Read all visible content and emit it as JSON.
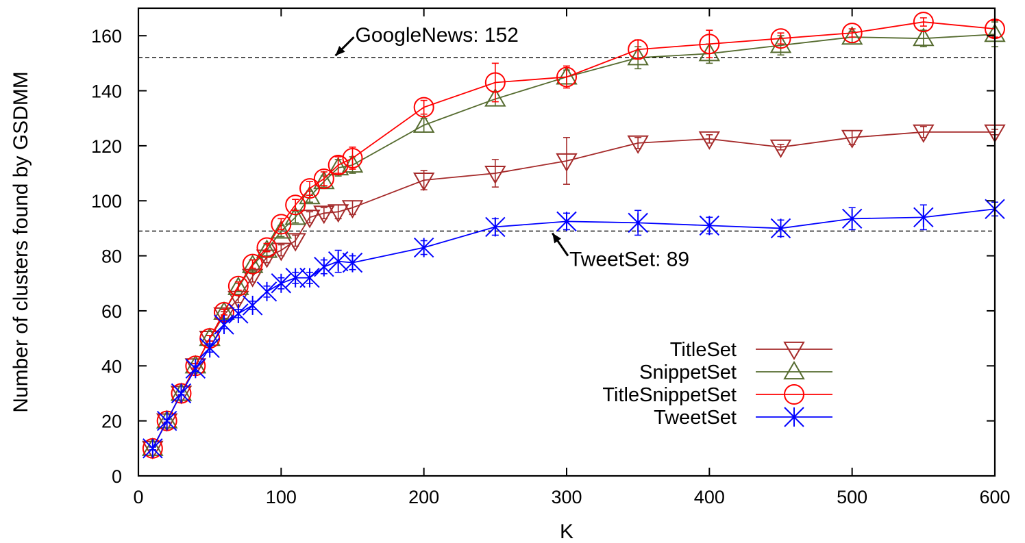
{
  "chart_data": {
    "type": "line",
    "title": "",
    "xlabel": "K",
    "ylabel": "Number of clusters found by GSDMM",
    "xlim": [
      0,
      600
    ],
    "ylim": [
      0,
      170
    ],
    "xticks": [
      0,
      100,
      200,
      300,
      400,
      500,
      600
    ],
    "yticks": [
      0,
      20,
      40,
      60,
      80,
      100,
      120,
      140,
      160
    ],
    "grid": false,
    "legend_position": "bottom-right",
    "x": [
      10,
      20,
      30,
      40,
      50,
      60,
      70,
      80,
      90,
      100,
      110,
      120,
      130,
      140,
      150,
      200,
      250,
      300,
      350,
      400,
      450,
      500,
      550,
      600
    ],
    "series": [
      {
        "name": "TitleSet",
        "color": "#a52a2a",
        "marker": "triangle-down",
        "values": [
          10,
          20,
          30,
          40,
          50,
          58.5,
          64.5,
          72.5,
          79.5,
          82,
          85.5,
          94,
          95.5,
          96,
          97.5,
          107.5,
          110,
          114.5,
          121,
          122.5,
          119.5,
          123,
          125,
          125
        ],
        "errors": [
          0.5,
          0.5,
          0.5,
          0.8,
          1,
          1.2,
          1.5,
          2,
          2,
          2,
          2,
          2,
          2,
          2.5,
          2.5,
          3.5,
          5,
          8.5,
          2,
          1.5,
          1,
          2.5,
          2,
          1
        ]
      },
      {
        "name": "SnippetSet",
        "color": "#556b2f",
        "marker": "triangle-up",
        "values": [
          10,
          20,
          30,
          40,
          50,
          59.5,
          68.5,
          76.5,
          82,
          89,
          94,
          101.5,
          107,
          112,
          113,
          127.5,
          137,
          145,
          152,
          153.5,
          156.5,
          159.5,
          159,
          160.5
        ],
        "errors": [
          0.5,
          0.5,
          0.5,
          0.8,
          1,
          1,
          1.5,
          2,
          2,
          2,
          2,
          2,
          2,
          3,
          3,
          2.5,
          2.5,
          2.5,
          4,
          3.5,
          3.5,
          2,
          3,
          4.5
        ]
      },
      {
        "name": "TitleSnippetSet",
        "color": "#ff0000",
        "marker": "circle",
        "values": [
          10,
          20,
          30,
          40,
          50,
          59.5,
          69,
          77,
          83,
          91.5,
          98.5,
          104.5,
          108,
          113,
          115.5,
          134,
          143,
          145,
          155,
          157,
          159,
          161,
          165,
          162.5
        ],
        "errors": [
          0.5,
          0.5,
          0.5,
          0.8,
          1,
          1,
          1.5,
          1.5,
          1.5,
          2,
          2,
          2.5,
          2.5,
          3,
          4,
          2.5,
          7,
          4,
          3.5,
          5,
          2,
          1.5,
          1.5,
          3
        ]
      },
      {
        "name": "TweetSet",
        "color": "#0000ff",
        "marker": "x-star",
        "values": [
          10,
          20,
          30,
          39,
          46.5,
          55,
          59,
          62,
          67,
          70,
          72,
          72,
          76,
          78,
          77.5,
          83,
          90.5,
          92.5,
          92,
          91,
          90,
          93.5,
          94,
          97
        ],
        "errors": [
          0.5,
          0.5,
          0.5,
          1,
          1.5,
          1.5,
          1.5,
          1.5,
          2,
          2,
          2,
          2,
          2.5,
          4,
          2.5,
          2.5,
          3,
          3,
          4.5,
          3,
          3,
          4,
          4.5,
          2.5
        ]
      }
    ],
    "reference_lines": [
      {
        "label": "GoogleNews: 152",
        "value": 152,
        "arrow_tip_x": 138,
        "label_x": 150,
        "label_y": 160.5
      },
      {
        "label": "TweetSet: 89",
        "value": 89,
        "arrow_tip_x": 290,
        "label_x": 300,
        "label_y": 79
      }
    ]
  }
}
